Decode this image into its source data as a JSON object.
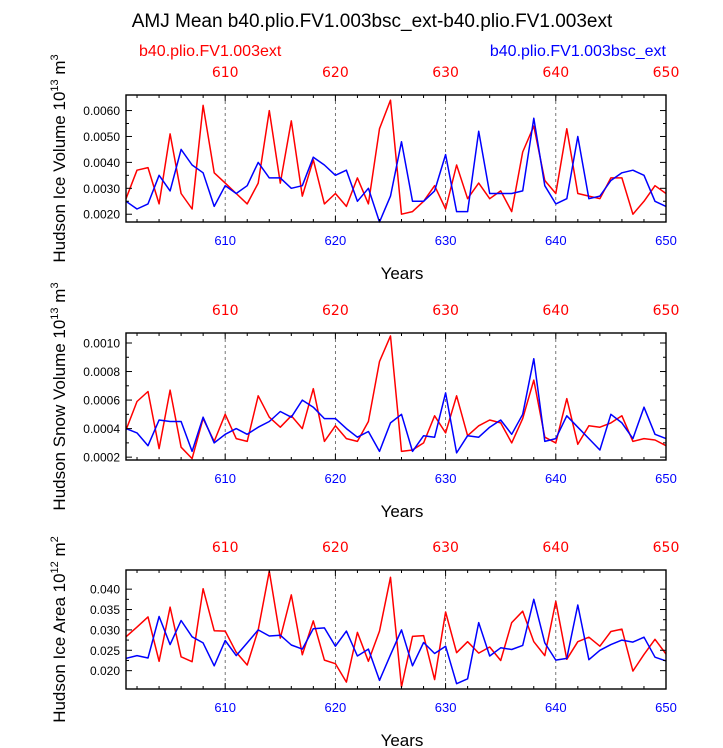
{
  "title": "AMJ Mean b40.plio.FV1.003bsc_ext-b40.plio.FV1.003ext",
  "legend": {
    "left": {
      "label": "b40.plio.FV1.003ext",
      "color": "#ff0000"
    },
    "right": {
      "label": "b40.plio.FV1.003bsc_ext",
      "color": "#0000ff"
    }
  },
  "chart_data": [
    {
      "type": "line",
      "ylabel_main": "Hudson Ice Volume 10",
      "ylabel_exp": "13",
      "ylabel_unit": " m",
      "ylabel_unit_exp": "3",
      "xlabel": "Years",
      "xlim": [
        601,
        650
      ],
      "ylim": [
        0.0017,
        0.0066
      ],
      "yticks": [
        0.002,
        0.003,
        0.004,
        0.005,
        0.006
      ],
      "ytick_labels": [
        "0.0020",
        "0.0030",
        "0.0040",
        "0.0050",
        "0.0060"
      ],
      "xticks": [
        610,
        620,
        630,
        640,
        650
      ],
      "xtick_labels": [
        "610",
        "620",
        "630",
        "640",
        "650"
      ],
      "x": [
        601,
        602,
        603,
        604,
        605,
        606,
        607,
        608,
        609,
        610,
        611,
        612,
        613,
        614,
        615,
        616,
        617,
        618,
        619,
        620,
        621,
        622,
        623,
        624,
        625,
        626,
        627,
        628,
        629,
        630,
        631,
        632,
        633,
        634,
        635,
        636,
        637,
        638,
        639,
        640,
        641,
        642,
        643,
        644,
        645,
        646,
        647,
        648,
        649,
        650
      ],
      "series": [
        {
          "name": "b40.plio.FV1.003ext",
          "color": "#ff0000",
          "values": [
            0.0026,
            0.0037,
            0.0038,
            0.0024,
            0.0051,
            0.0028,
            0.0022,
            0.0062,
            0.0036,
            0.0032,
            0.0028,
            0.0024,
            0.0032,
            0.006,
            0.0032,
            0.0056,
            0.0027,
            0.0041,
            0.0024,
            0.0028,
            0.0023,
            0.0034,
            0.0024,
            0.0053,
            0.0064,
            0.002,
            0.0021,
            0.0025,
            0.0031,
            0.0022,
            0.0039,
            0.0026,
            0.0032,
            0.0026,
            0.0029,
            0.0021,
            0.0044,
            0.0054,
            0.0033,
            0.0028,
            0.0053,
            0.0028,
            0.0027,
            0.0026,
            0.0034,
            0.0034,
            0.002,
            0.0025,
            0.0031,
            0.0028
          ]
        },
        {
          "name": "b40.plio.FV1.003bsc_ext",
          "color": "#0000ff",
          "values": [
            0.0025,
            0.0022,
            0.0024,
            0.0035,
            0.0029,
            0.0045,
            0.0039,
            0.0036,
            0.0023,
            0.0031,
            0.0028,
            0.0031,
            0.004,
            0.0034,
            0.0034,
            0.003,
            0.0031,
            0.0042,
            0.0039,
            0.0035,
            0.0037,
            0.0025,
            0.003,
            0.0017,
            0.0027,
            0.0048,
            0.0025,
            0.0025,
            0.0029,
            0.0043,
            0.0021,
            0.0021,
            0.0052,
            0.0028,
            0.0028,
            0.0028,
            0.0029,
            0.0057,
            0.0031,
            0.0024,
            0.0026,
            0.005,
            0.0026,
            0.0027,
            0.0033,
            0.0036,
            0.0037,
            0.0035,
            0.0025,
            0.0023
          ]
        }
      ]
    },
    {
      "type": "line",
      "ylabel_main": "Hudson Snow Volume 10",
      "ylabel_exp": "13",
      "ylabel_unit": " m",
      "ylabel_unit_exp": "3",
      "xlabel": "Years",
      "xlim": [
        601,
        650
      ],
      "ylim": [
        0.00018,
        0.00107
      ],
      "yticks": [
        0.0002,
        0.0004,
        0.0006,
        0.0008,
        0.001
      ],
      "ytick_labels": [
        "0.0002",
        "0.0004",
        "0.0006",
        "0.0008",
        "0.0010"
      ],
      "xticks": [
        610,
        620,
        630,
        640,
        650
      ],
      "xtick_labels": [
        "610",
        "620",
        "630",
        "640",
        "650"
      ],
      "x": [
        601,
        602,
        603,
        604,
        605,
        606,
        607,
        608,
        609,
        610,
        611,
        612,
        613,
        614,
        615,
        616,
        617,
        618,
        619,
        620,
        621,
        622,
        623,
        624,
        625,
        626,
        627,
        628,
        629,
        630,
        631,
        632,
        633,
        634,
        635,
        636,
        637,
        638,
        639,
        640,
        641,
        642,
        643,
        644,
        645,
        646,
        647,
        648,
        649,
        650
      ],
      "series": [
        {
          "name": "b40.plio.FV1.003ext",
          "color": "#ff0000",
          "values": [
            0.00039,
            0.00059,
            0.00066,
            0.00026,
            0.00067,
            0.00027,
            0.00019,
            0.00047,
            0.00031,
            0.0005,
            0.00033,
            0.00031,
            0.00063,
            0.00048,
            0.00041,
            0.00049,
            0.0004,
            0.00068,
            0.00031,
            0.00042,
            0.00033,
            0.00031,
            0.00045,
            0.00087,
            0.00105,
            0.00024,
            0.00025,
            0.0003,
            0.00049,
            0.00037,
            0.00063,
            0.00035,
            0.00042,
            0.00046,
            0.00044,
            0.0003,
            0.00047,
            0.00074,
            0.00034,
            0.0003,
            0.00061,
            0.00029,
            0.00042,
            0.00041,
            0.00044,
            0.00049,
            0.00031,
            0.00033,
            0.00032,
            0.00028
          ]
        },
        {
          "name": "b40.plio.FV1.003bsc_ext",
          "color": "#0000ff",
          "values": [
            0.0004,
            0.00037,
            0.00028,
            0.00046,
            0.00045,
            0.00045,
            0.00024,
            0.00048,
            0.0003,
            0.00036,
            0.0004,
            0.00036,
            0.00041,
            0.00045,
            0.00052,
            0.00048,
            0.0006,
            0.00055,
            0.00047,
            0.00047,
            0.0004,
            0.00034,
            0.00038,
            0.00024,
            0.00044,
            0.0005,
            0.00024,
            0.00035,
            0.00034,
            0.00065,
            0.00023,
            0.00035,
            0.00034,
            0.00041,
            0.00046,
            0.00036,
            0.0005,
            0.00089,
            0.00031,
            0.00033,
            0.00049,
            0.00041,
            0.00033,
            0.00025,
            0.0005,
            0.00044,
            0.00033,
            0.00055,
            0.00036,
            0.00033
          ]
        }
      ]
    },
    {
      "type": "line",
      "ylabel_main": "Hudson Ice Area 10",
      "ylabel_exp": "12",
      "ylabel_unit": " m",
      "ylabel_unit_exp": "2",
      "xlabel": "Years",
      "xlim": [
        601,
        650
      ],
      "ylim": [
        0.0155,
        0.0447
      ],
      "yticks": [
        0.02,
        0.025,
        0.03,
        0.035,
        0.04
      ],
      "ytick_labels": [
        "0.020",
        "0.025",
        "0.030",
        "0.035",
        "0.040"
      ],
      "xticks": [
        610,
        620,
        630,
        640,
        650
      ],
      "xtick_labels": [
        "610",
        "620",
        "630",
        "640",
        "650"
      ],
      "x": [
        601,
        602,
        603,
        604,
        605,
        606,
        607,
        608,
        609,
        610,
        611,
        612,
        613,
        614,
        615,
        616,
        617,
        618,
        619,
        620,
        621,
        622,
        623,
        624,
        625,
        626,
        627,
        628,
        629,
        630,
        631,
        632,
        633,
        634,
        635,
        636,
        637,
        638,
        639,
        640,
        641,
        642,
        643,
        644,
        645,
        646,
        647,
        648,
        649,
        650
      ],
      "series": [
        {
          "name": "b40.plio.FV1.003ext",
          "color": "#ff0000",
          "values": [
            0.0283,
            0.0307,
            0.0332,
            0.0223,
            0.0356,
            0.0234,
            0.0222,
            0.0401,
            0.0298,
            0.0297,
            0.0245,
            0.0214,
            0.03,
            0.0444,
            0.028,
            0.0386,
            0.0239,
            0.0322,
            0.0226,
            0.0217,
            0.0172,
            0.0294,
            0.0223,
            0.0297,
            0.0429,
            0.016,
            0.0284,
            0.0286,
            0.0178,
            0.0344,
            0.0244,
            0.0271,
            0.0243,
            0.0258,
            0.0225,
            0.0318,
            0.0346,
            0.0271,
            0.0237,
            0.037,
            0.0228,
            0.0271,
            0.0282,
            0.026,
            0.0296,
            0.0302,
            0.0199,
            0.024,
            0.0277,
            0.0241
          ]
        },
        {
          "name": "b40.plio.FV1.003bsc_ext",
          "color": "#0000ff",
          "values": [
            0.023,
            0.0237,
            0.0231,
            0.0333,
            0.0264,
            0.0323,
            0.0283,
            0.0268,
            0.0212,
            0.0274,
            0.0237,
            0.0268,
            0.03,
            0.0285,
            0.0287,
            0.0263,
            0.0253,
            0.0303,
            0.0305,
            0.026,
            0.0297,
            0.0236,
            0.0253,
            0.0176,
            0.0239,
            0.03,
            0.0212,
            0.0269,
            0.0242,
            0.026,
            0.0168,
            0.018,
            0.0318,
            0.0236,
            0.0256,
            0.0252,
            0.0262,
            0.0375,
            0.0268,
            0.0226,
            0.023,
            0.0361,
            0.0227,
            0.025,
            0.0264,
            0.0275,
            0.027,
            0.0282,
            0.0233,
            0.0224
          ]
        }
      ]
    }
  ]
}
